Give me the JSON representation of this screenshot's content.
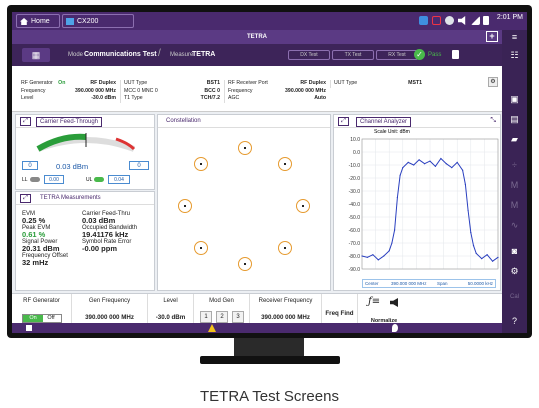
{
  "caption": "TETRA Test Screens",
  "topbar": {
    "home_tab": "Home",
    "app_tab": "CX200",
    "time": "2:01 PM",
    "ampm": ""
  },
  "titlebar": {
    "title": "TETRA",
    "plus": "+"
  },
  "modebar": {
    "mode_label": "Mode",
    "mode_value": "Communications Test",
    "measure_label": "Measure",
    "measure_value": "TETRA",
    "tabs": [
      "DX Test",
      "TX Test",
      "RX Test"
    ],
    "pass_label": "Pass"
  },
  "info": {
    "col1": [
      {
        "k": "RF Generator",
        "m": "On",
        "v": "RF Duplex"
      },
      {
        "k": "Frequency",
        "m": "",
        "v": "390.000 000 MHz"
      },
      {
        "k": "Level",
        "m": "",
        "v": "-30.0 dBm"
      }
    ],
    "col2": [
      {
        "k": "UUT Type",
        "v": "BST1"
      },
      {
        "k": "MCC  0    MNC  0",
        "v": "BCC  0"
      },
      {
        "k": "T1 Type",
        "v": "TCH/7.2"
      }
    ],
    "col3": [
      {
        "k": "RF Receiver Port",
        "v": "RF Duplex"
      },
      {
        "k": "Frequency",
        "v": "390.000 000 MHz"
      },
      {
        "k": "AGC",
        "v": "Auto"
      }
    ],
    "col4": [
      {
        "k": "UUT Type",
        "v": "MST1"
      }
    ]
  },
  "feedthrough": {
    "title": "Carrier Feed-Through",
    "left_box": "0",
    "right_box": "0",
    "value": "0.03 dBm",
    "ll_label": "LL",
    "ll_value": "0.00",
    "ul_label": "UL",
    "ul_value": "0.04",
    "level_fraction": 0.5
  },
  "measurements": {
    "title": "TETRA Measurements",
    "items": [
      {
        "label": "EVM",
        "value": "0.25 %"
      },
      {
        "label": "Peak EVM",
        "value": "0.61 %"
      },
      {
        "label": "Signal Power",
        "value": "20.31 dBm"
      },
      {
        "label": "Frequency Offset",
        "value": "32 mHz"
      }
    ],
    "items_right": [
      {
        "label": "Carrier Feed-Thru",
        "value": "0.03 dBm"
      },
      {
        "label": "Occupied Bandwidth",
        "value": "19.41176 kHz"
      },
      {
        "label": "Symbol Rate Error",
        "value": "-0.00 ppm"
      }
    ]
  },
  "constellation": {
    "title": "Constellation"
  },
  "analyzer": {
    "title": "Channel Analyzer",
    "scale": "Scale Unit: dBm",
    "center_label": "Center",
    "center_value": "390.000 000 MHz",
    "span_label": "Span",
    "span_value": "50.0000 kHz"
  },
  "chart_data": {
    "type": "line",
    "title": "",
    "ylabel": "Scale Unit: dBm",
    "ylim": [
      -90,
      10
    ],
    "yticks": [
      "10.0",
      "0.0",
      "-10.0",
      "-20.0",
      "-30.0",
      "-40.0",
      "-50.0",
      "-60.0",
      "-70.0",
      "-80.0",
      "-90.0"
    ],
    "x": [
      0,
      4,
      8,
      12,
      16,
      20,
      22,
      24,
      26,
      28,
      30,
      34,
      38,
      42,
      46,
      50,
      54,
      58,
      62,
      66,
      70,
      74,
      76,
      78,
      80,
      82,
      84,
      88,
      92,
      96,
      100
    ],
    "series": [
      {
        "name": "",
        "values": [
          -80,
          -81,
          -79,
          -83,
          -80,
          -76,
          -70,
          -60,
          -35,
          -18,
          -12,
          -8,
          -10,
          -6,
          -9,
          -7,
          -11,
          -5,
          -9,
          -12,
          -8,
          -14,
          -25,
          -45,
          -62,
          -72,
          -78,
          -82,
          -79,
          -84,
          -81
        ]
      }
    ]
  },
  "controls": {
    "rf_gen": {
      "label": "RF Generator",
      "on": "On",
      "off": "Off"
    },
    "gen_freq": {
      "label": "Gen Frequency",
      "value": "390.000 000 MHz"
    },
    "level": {
      "label": "Level",
      "value": "-30.0 dBm"
    },
    "mod_gen": {
      "label": "Mod Gen",
      "buttons": [
        "1",
        "2",
        "3"
      ]
    },
    "rx_freq": {
      "label": "Receiver Frequency",
      "value": "390.000 000 MHz"
    },
    "freq_find": "Freq Find",
    "normalize": "Normalize"
  },
  "colors": {
    "purple": "#4a2a6e",
    "accent_orange": "#e69a2e",
    "trace": "#2a3fbf",
    "pass": "#49b94b"
  }
}
